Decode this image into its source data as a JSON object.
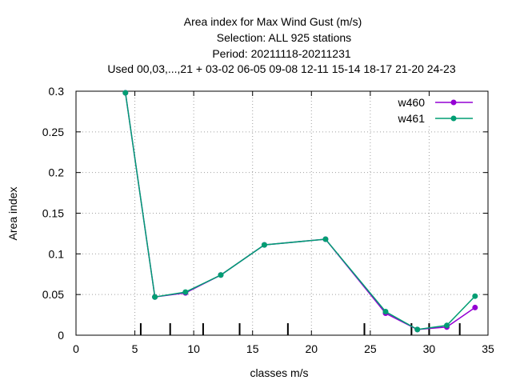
{
  "chart_data": {
    "type": "line",
    "title_lines": [
      "Area index  for Max Wind Gust (m/s)",
      "Selection: ALL     925 stations",
      "Period: 20211118-20211231",
      "Used  00,03,...,21  + 03-02 06-05 09-08 12-11 15-14 18-17 21-20 24-23"
    ],
    "xlabel": "classes m/s",
    "ylabel": "Area index",
    "xlim": [
      0,
      35
    ],
    "ylim": [
      0,
      0.3
    ],
    "xticks": [
      0,
      5,
      10,
      15,
      20,
      25,
      30,
      35
    ],
    "yticks": [
      0,
      0.05,
      0.1,
      0.15,
      0.2,
      0.25,
      0.3
    ],
    "xtick_labels": [
      "0",
      "5",
      "10",
      "15",
      "20",
      "25",
      "30",
      "35"
    ],
    "ytick_labels": [
      "0",
      "0.05",
      "0.1",
      "0.15",
      "0.2",
      "0.25",
      "0.3"
    ],
    "grid": true,
    "legend_position": "top-right",
    "class_boundaries": [
      5.5,
      8,
      10.8,
      13.9,
      18,
      24.5,
      28.5,
      30,
      32.6
    ],
    "series": [
      {
        "name": "w460",
        "color": "#9400d3",
        "x": [
          4.2,
          6.7,
          9.3,
          12.3,
          16.0,
          21.2,
          26.3,
          29.0,
          31.5,
          33.9
        ],
        "y": [
          0.298,
          0.047,
          0.052,
          0.074,
          0.111,
          0.118,
          0.027,
          0.007,
          0.01,
          0.034
        ]
      },
      {
        "name": "w461",
        "color": "#009e73",
        "x": [
          4.2,
          6.7,
          9.3,
          12.3,
          16.0,
          21.2,
          26.3,
          29.0,
          31.5,
          33.9
        ],
        "y": [
          0.298,
          0.047,
          0.053,
          0.074,
          0.111,
          0.118,
          0.029,
          0.007,
          0.012,
          0.048
        ]
      }
    ]
  }
}
